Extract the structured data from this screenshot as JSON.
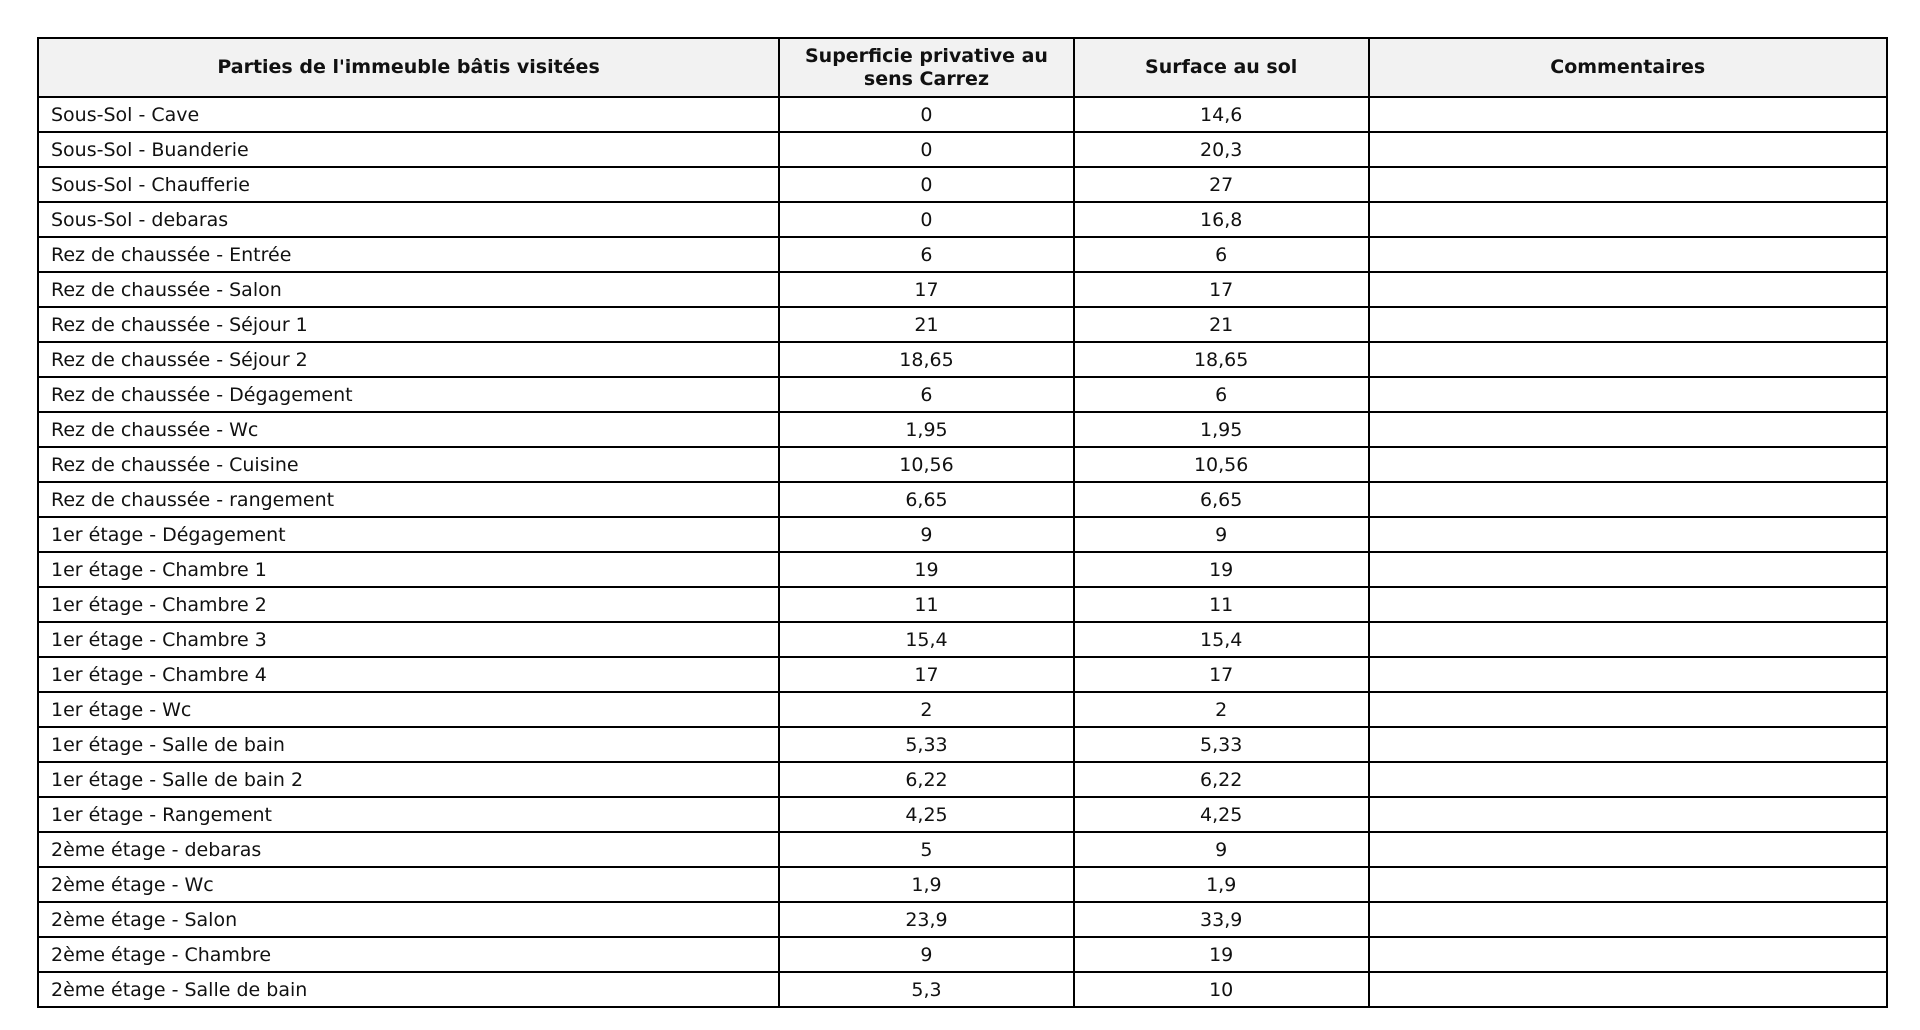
{
  "table": {
    "headers": [
      "Parties de l'immeuble bâtis visitées",
      "Superficie privative au sens Carrez",
      "Surface au sol",
      "Commentaires"
    ],
    "rows": [
      [
        "Sous-Sol - Cave",
        "0",
        "14,6",
        ""
      ],
      [
        "Sous-Sol - Buanderie",
        "0",
        "20,3",
        ""
      ],
      [
        "Sous-Sol - Chaufferie",
        "0",
        "27",
        ""
      ],
      [
        "Sous-Sol - debaras",
        "0",
        "16,8",
        ""
      ],
      [
        "Rez de chaussée - Entrée",
        "6",
        "6",
        ""
      ],
      [
        "Rez de chaussée - Salon",
        "17",
        "17",
        ""
      ],
      [
        "Rez de chaussée - Séjour 1",
        "21",
        "21",
        ""
      ],
      [
        "Rez de chaussée - Séjour 2",
        "18,65",
        "18,65",
        ""
      ],
      [
        "Rez de chaussée - Dégagement",
        "6",
        "6",
        ""
      ],
      [
        "Rez de chaussée - Wc",
        "1,95",
        "1,95",
        ""
      ],
      [
        "Rez de chaussée - Cuisine",
        "10,56",
        "10,56",
        ""
      ],
      [
        "Rez de chaussée - rangement",
        "6,65",
        "6,65",
        ""
      ],
      [
        "1er étage - Dégagement",
        "9",
        "9",
        ""
      ],
      [
        "1er étage - Chambre 1",
        "19",
        "19",
        ""
      ],
      [
        "1er étage - Chambre 2",
        "11",
        "11",
        ""
      ],
      [
        "1er étage - Chambre 3",
        "15,4",
        "15,4",
        ""
      ],
      [
        "1er étage - Chambre 4",
        "17",
        "17",
        ""
      ],
      [
        "1er étage - Wc",
        "2",
        "2",
        ""
      ],
      [
        "1er étage - Salle de bain",
        "5,33",
        "5,33",
        ""
      ],
      [
        "1er étage - Salle de bain 2",
        "6,22",
        "6,22",
        ""
      ],
      [
        "1er étage - Rangement",
        "4,25",
        "4,25",
        ""
      ],
      [
        "2ème étage - debaras",
        "5",
        "9",
        ""
      ],
      [
        "2ème étage - Wc",
        "1,9",
        "1,9",
        ""
      ],
      [
        "2ème étage - Salon",
        "23,9",
        "33,9",
        ""
      ],
      [
        "2ème étage - Chambre",
        "9",
        "19",
        ""
      ],
      [
        "2ème étage - Salle de bain",
        "5,3",
        "10",
        ""
      ]
    ]
  }
}
